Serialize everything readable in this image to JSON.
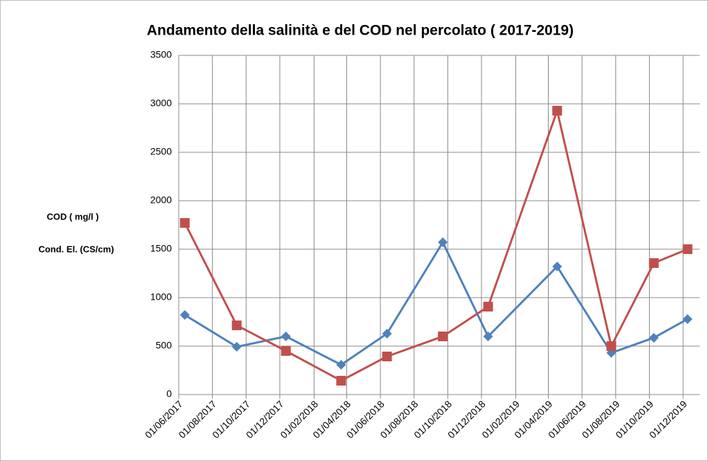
{
  "chart_data": {
    "type": "line",
    "title": "Andamento della salinità e del COD nel percolato ( 2017-2019)",
    "y_label_lines": [
      "COD ( mg/l )",
      "Cond. El. (CS/cm)"
    ],
    "x": [
      "2017-06-12",
      "2017-09-14",
      "2017-12-12",
      "2018-03-22",
      "2018-06-13",
      "2018-09-22",
      "2018-12-13",
      "2019-04-17",
      "2019-07-24",
      "2019-10-09",
      "2019-12-09"
    ],
    "series": [
      {
        "color": "#4f81bd",
        "marker": "diamond",
        "values": [
          821,
          493,
          600,
          307,
          629,
          1571,
          600,
          1321,
          430,
          586,
          779
        ]
      },
      {
        "color": "#c0504d",
        "marker": "square",
        "values": [
          1771,
          714,
          450,
          143,
          393,
          600,
          907,
          2929,
          500,
          1357,
          1500
        ]
      }
    ],
    "xlim": [
      "2017-06-01",
      "2019-12-31"
    ],
    "xticks": [
      {
        "value": "2017-06-01",
        "label": "01/06/2017"
      },
      {
        "value": "2017-08-01",
        "label": "01/08/2017"
      },
      {
        "value": "2017-10-01",
        "label": "01/10/2017"
      },
      {
        "value": "2017-12-01",
        "label": "01/12/2017"
      },
      {
        "value": "2018-02-01",
        "label": "01/02/2018"
      },
      {
        "value": "2018-04-01",
        "label": "01/04/2018"
      },
      {
        "value": "2018-06-01",
        "label": "01/06/2018"
      },
      {
        "value": "2018-08-01",
        "label": "01/08/2018"
      },
      {
        "value": "2018-10-01",
        "label": "01/10/2018"
      },
      {
        "value": "2018-12-01",
        "label": "01/12/2018"
      },
      {
        "value": "2019-02-01",
        "label": "01/02/2019"
      },
      {
        "value": "2019-04-01",
        "label": "01/04/2019"
      },
      {
        "value": "2019-06-01",
        "label": "01/06/2019"
      },
      {
        "value": "2019-08-01",
        "label": "01/08/2019"
      },
      {
        "value": "2019-10-01",
        "label": "01/10/2019"
      },
      {
        "value": "2019-12-01",
        "label": "01/12/2019"
      }
    ],
    "ylim": [
      0,
      3500
    ],
    "yticks": [
      0,
      500,
      1000,
      1500,
      2000,
      2500,
      3000,
      3500
    ],
    "grid": true
  }
}
